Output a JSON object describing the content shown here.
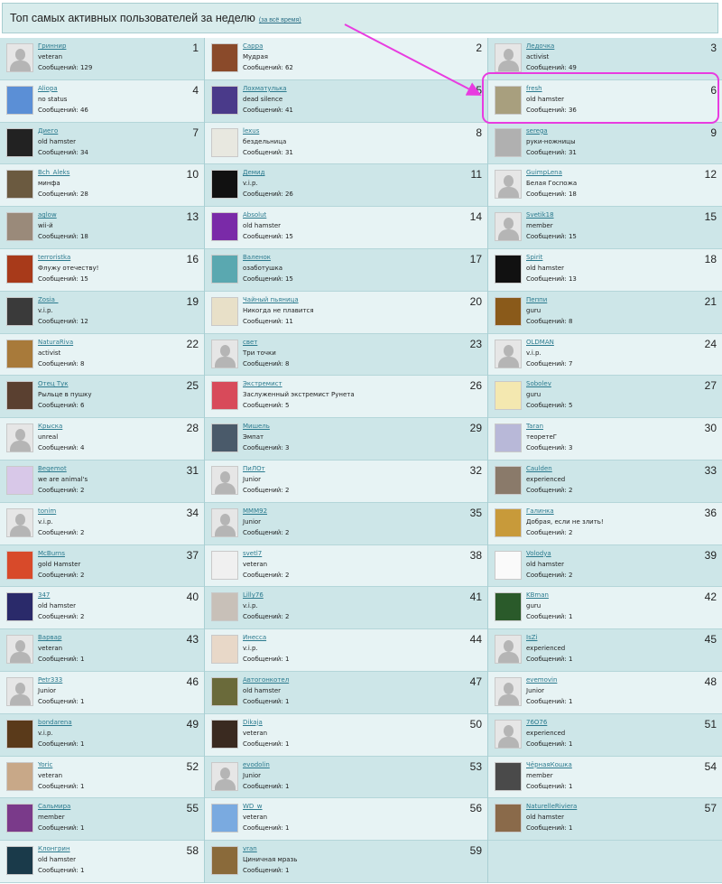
{
  "header": {
    "title": "Топ самых активных пользователей за неделю",
    "all_time_link": "(за всё время)"
  },
  "messages_label": "Сообщений:",
  "annotation": {
    "color": "#e83ce0",
    "highlighted_rank": 6
  },
  "colors": {
    "cell_dark": "#cde6e8",
    "cell_light": "#e7f3f4",
    "link": "#2b7a8e"
  },
  "users": [
    {
      "rank": 1,
      "name": "Гриннир",
      "status": "veteran",
      "messages": 129,
      "avatar": "default"
    },
    {
      "rank": 2,
      "name": "Сарра",
      "status": "Мудрая",
      "messages": 62,
      "avatar": "#8a4a2a"
    },
    {
      "rank": 3,
      "name": "Ледочка",
      "status": "activist",
      "messages": 49,
      "avatar": "default"
    },
    {
      "rank": 4,
      "name": "Aliopa",
      "status": "no status",
      "messages": 46,
      "avatar": "#5b8fd6"
    },
    {
      "rank": 5,
      "name": "Лохматулька",
      "status": "dead silence",
      "messages": 41,
      "avatar": "#4a3a8a"
    },
    {
      "rank": 6,
      "name": "fresh",
      "status": "old hamster",
      "messages": 36,
      "avatar": "#a89f7e"
    },
    {
      "rank": 7,
      "name": "Диего",
      "status": "old hamster",
      "messages": 34,
      "avatar": "#222222"
    },
    {
      "rank": 8,
      "name": "lexus",
      "status": "бездельница",
      "messages": 31,
      "avatar": "#e8e8e0"
    },
    {
      "rank": 9,
      "name": "serega",
      "status": "руки-ножницы",
      "messages": 31,
      "avatar": "#b0b0b0"
    },
    {
      "rank": 10,
      "name": "Bch_Aleks",
      "status": "минфа",
      "messages": 28,
      "avatar": "#6b5a40"
    },
    {
      "rank": 11,
      "name": "Демид",
      "status": "v.i.p.",
      "messages": 26,
      "avatar": "#111111"
    },
    {
      "rank": 12,
      "name": "GuimpLena",
      "status": "Белая Госпожа",
      "messages": 18,
      "avatar": "default"
    },
    {
      "rank": 13,
      "name": "aglow",
      "status": "wii-й",
      "messages": 18,
      "avatar": "#9a8a7a"
    },
    {
      "rank": 14,
      "name": "Absolut",
      "status": "old hamster",
      "messages": 15,
      "avatar": "#7a2aa8"
    },
    {
      "rank": 15,
      "name": "Svetik18",
      "status": "member",
      "messages": 15,
      "avatar": "default"
    },
    {
      "rank": 16,
      "name": "terroristka",
      "status": "Флужу отечеству!",
      "messages": 15,
      "avatar": "#a83a1a"
    },
    {
      "rank": 17,
      "name": "Валенок",
      "status": "озаботушка",
      "messages": 15,
      "avatar": "#5aa8b0"
    },
    {
      "rank": 18,
      "name": "Spirit",
      "status": "old hamster",
      "messages": 13,
      "avatar": "#111111"
    },
    {
      "rank": 19,
      "name": "Zosia_",
      "status": "v.i.p.",
      "messages": 12,
      "avatar": "#3a3a3a"
    },
    {
      "rank": 20,
      "name": "Чайный пьяница",
      "status": "Никогда не плавится",
      "messages": 11,
      "avatar": "#e8e0c8"
    },
    {
      "rank": 21,
      "name": "Пеппи",
      "status": "guru",
      "messages": 8,
      "avatar": "#8a5a1a"
    },
    {
      "rank": 22,
      "name": "NaturaRiva",
      "status": "activist",
      "messages": 8,
      "avatar": "#a87a3a"
    },
    {
      "rank": 23,
      "name": "свет",
      "status": "Три точки",
      "messages": 8,
      "avatar": "default"
    },
    {
      "rank": 24,
      "name": "OLDMAN",
      "status": "v.i.p.",
      "messages": 7,
      "avatar": "default"
    },
    {
      "rank": 25,
      "name": "Отец Тук",
      "status": "Рыльце в пушку",
      "messages": 6,
      "avatar": "#5a4030"
    },
    {
      "rank": 26,
      "name": "Экстремист",
      "status": "Заслуженный экстремист Рунета",
      "messages": 5,
      "avatar": "#d84a5a"
    },
    {
      "rank": 27,
      "name": "Sobolev",
      "status": "guru",
      "messages": 5,
      "avatar": "#f4e8b0"
    },
    {
      "rank": 28,
      "name": "Крыска",
      "status": "unreal",
      "messages": 4,
      "avatar": "default"
    },
    {
      "rank": 29,
      "name": "Мишель",
      "status": "Эмпат",
      "messages": 3,
      "avatar": "#4a5a6a"
    },
    {
      "rank": 30,
      "name": "Taran",
      "status": "теоретеГ",
      "messages": 3,
      "avatar": "#b8b8d8"
    },
    {
      "rank": 31,
      "name": "Begemot",
      "status": "we are animal's",
      "messages": 2,
      "avatar": "#d8c8e8"
    },
    {
      "rank": 32,
      "name": "ПиЛОт",
      "status": "Junior",
      "messages": 2,
      "avatar": "default"
    },
    {
      "rank": 33,
      "name": "Caulden",
      "status": "experienced",
      "messages": 2,
      "avatar": "#8a7a6a"
    },
    {
      "rank": 34,
      "name": "tonim",
      "status": "v.i.p.",
      "messages": 2,
      "avatar": "default"
    },
    {
      "rank": 35,
      "name": "MMM92",
      "status": "Junior",
      "messages": 2,
      "avatar": "default"
    },
    {
      "rank": 36,
      "name": "Галинка",
      "status": "Добрая, если не злить!",
      "messages": 2,
      "avatar": "#c89a3a"
    },
    {
      "rank": 37,
      "name": "McBurns",
      "status": "gold Hamster",
      "messages": 2,
      "avatar": "#d84a2a"
    },
    {
      "rank": 38,
      "name": "svetl7",
      "status": "veteran",
      "messages": 2,
      "avatar": "#f0f0f0"
    },
    {
      "rank": 39,
      "name": "Volodya",
      "status": "old hamster",
      "messages": 2,
      "avatar": "#fafafa"
    },
    {
      "rank": 40,
      "name": "347",
      "status": "old hamster",
      "messages": 2,
      "avatar": "#2a2a6a"
    },
    {
      "rank": 41,
      "name": "Lilly76",
      "status": "v.i.p.",
      "messages": 2,
      "avatar": "#c8c0b8"
    },
    {
      "rank": 42,
      "name": "KBman",
      "status": "guru",
      "messages": 1,
      "avatar": "#2a5a2a"
    },
    {
      "rank": 43,
      "name": "Варвар",
      "status": "veteran",
      "messages": 1,
      "avatar": "default"
    },
    {
      "rank": 44,
      "name": "Инесса",
      "status": "v.i.p.",
      "messages": 1,
      "avatar": "#e8d8c8"
    },
    {
      "rank": 45,
      "name": "IsZi",
      "status": "experienced",
      "messages": 1,
      "avatar": "default"
    },
    {
      "rank": 46,
      "name": "Petr333",
      "status": "Junior",
      "messages": 1,
      "avatar": "default"
    },
    {
      "rank": 47,
      "name": "Автогонкотел",
      "status": "old hamster",
      "messages": 1,
      "avatar": "#6a6a3a"
    },
    {
      "rank": 48,
      "name": "evemovin",
      "status": "Junior",
      "messages": 1,
      "avatar": "default"
    },
    {
      "rank": 49,
      "name": "bondarena",
      "status": "v.i.p.",
      "messages": 1,
      "avatar": "#5a3a1a"
    },
    {
      "rank": 50,
      "name": "Dikaja",
      "status": "veteran",
      "messages": 1,
      "avatar": "#3a2a20"
    },
    {
      "rank": 51,
      "name": "76O76",
      "status": "experienced",
      "messages": 1,
      "avatar": "default"
    },
    {
      "rank": 52,
      "name": "Yoric",
      "status": "veteran",
      "messages": 1,
      "avatar": "#c8a888"
    },
    {
      "rank": 53,
      "name": "evodolin",
      "status": "Junior",
      "messages": 1,
      "avatar": "default"
    },
    {
      "rank": 54,
      "name": "ЧёрнаяКошка",
      "status": "member",
      "messages": 1,
      "avatar": "#4a4a4a"
    },
    {
      "rank": 55,
      "name": "Сальмира",
      "status": "member",
      "messages": 1,
      "avatar": "#7a3a8a"
    },
    {
      "rank": 56,
      "name": "WD_w",
      "status": "veteran",
      "messages": 1,
      "avatar": "#7aaae0"
    },
    {
      "rank": 57,
      "name": "NaturelleRiviera",
      "status": "old hamster",
      "messages": 1,
      "avatar": "#8a6a4a"
    },
    {
      "rank": 58,
      "name": "Клонгрин",
      "status": "old hamster",
      "messages": 1,
      "avatar": "#1a3a4a"
    },
    {
      "rank": 59,
      "name": "vran",
      "status": "Циничная мразь",
      "messages": 1,
      "avatar": "#8a6a3a"
    }
  ]
}
